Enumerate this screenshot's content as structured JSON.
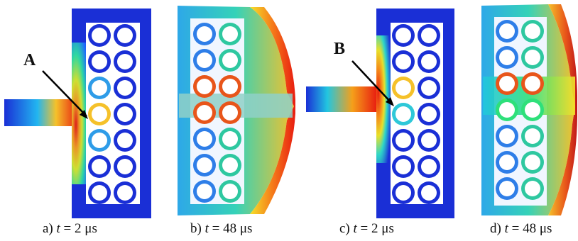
{
  "panels": [
    {
      "id": "a",
      "caption_prefix": "a) ",
      "var": "t",
      "op": " = ",
      "value": "2 μs"
    },
    {
      "id": "b",
      "caption_prefix": "b) ",
      "var": "t",
      "op": " = ",
      "value": "48 μs"
    },
    {
      "id": "c",
      "caption_prefix": "c) ",
      "var": "t",
      "op": " = ",
      "value": "2 μs"
    },
    {
      "id": "d",
      "caption_prefix": "d) ",
      "var": "t",
      "op": " = ",
      "value": "48 μs"
    }
  ],
  "annotations": {
    "A": "A",
    "B": "B"
  },
  "colors": {
    "background": "#ffffff",
    "frame": "#1a2fd6",
    "hole": "#ffffff",
    "low": "#2233dd",
    "mid_low": "#1ea8ff",
    "mid": "#2ee07a",
    "mid_high": "#f5e02a",
    "high": "#e81c10"
  }
}
